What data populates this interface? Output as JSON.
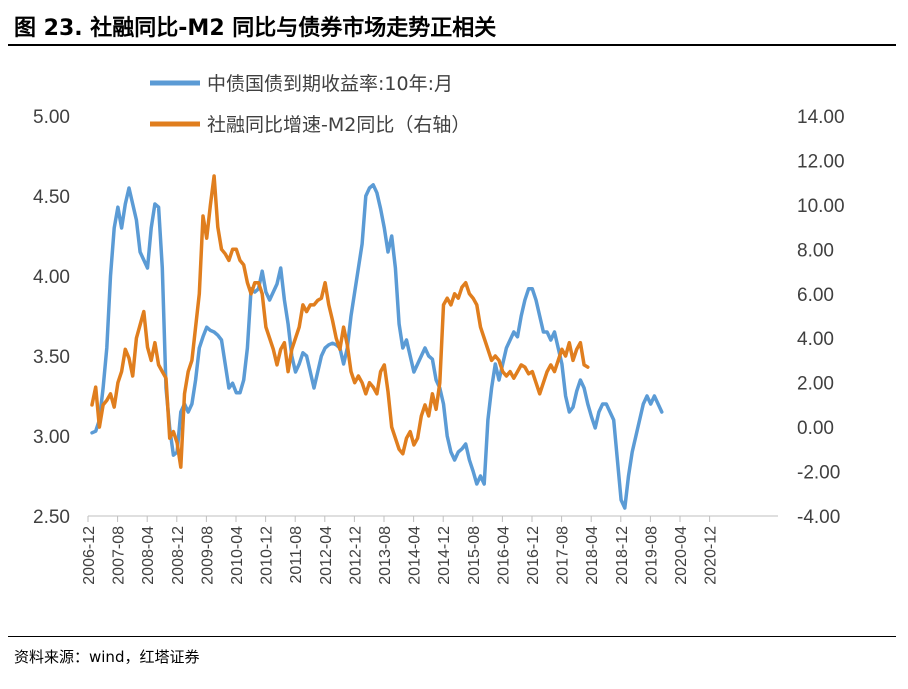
{
  "title": "图 23. 社融同比-M2 同比与债券市场走势正相关",
  "source": "资料来源：wind，红塔证券",
  "chart_data": {
    "type": "line",
    "legend_position": "top-center",
    "y_left": {
      "ticks": [
        "2.50",
        "3.00",
        "3.50",
        "4.00",
        "4.50",
        "5.00"
      ],
      "range": [
        2.5,
        5.0
      ]
    },
    "y_right": {
      "ticks": [
        "-4.00",
        "-2.00",
        "0.00",
        "2.00",
        "4.00",
        "6.00",
        "8.00",
        "10.00",
        "12.00",
        "14.00"
      ],
      "range": [
        -4,
        14
      ]
    },
    "x_ticks": [
      "2006-12",
      "2007-08",
      "2008-04",
      "2008-12",
      "2009-08",
      "2010-04",
      "2010-12",
      "2011-08",
      "2012-04",
      "2012-12",
      "2013-08",
      "2014-04",
      "2014-12",
      "2015-08",
      "2016-04",
      "2016-12",
      "2017-08",
      "2018-04",
      "2018-12",
      "2019-08",
      "2020-04",
      "2020-12"
    ],
    "x_start": "2006-12",
    "series": [
      {
        "name": "中债国债到期收益率:10年:月",
        "axis": "left",
        "color": "#5B9BD5",
        "values": [
          3.02,
          3.03,
          3.1,
          3.3,
          3.55,
          4.0,
          4.3,
          4.43,
          4.3,
          4.45,
          4.55,
          4.45,
          4.35,
          4.15,
          4.1,
          4.05,
          4.3,
          4.45,
          4.43,
          4.05,
          3.3,
          3.05,
          2.88,
          2.9,
          3.15,
          3.2,
          3.15,
          3.2,
          3.35,
          3.55,
          3.62,
          3.68,
          3.66,
          3.65,
          3.63,
          3.6,
          3.45,
          3.3,
          3.33,
          3.27,
          3.27,
          3.35,
          3.55,
          3.92,
          3.9,
          3.92,
          4.03,
          3.9,
          3.85,
          3.9,
          3.95,
          4.05,
          3.85,
          3.7,
          3.5,
          3.4,
          3.45,
          3.52,
          3.5,
          3.4,
          3.3,
          3.4,
          3.5,
          3.55,
          3.57,
          3.58,
          3.57,
          3.55,
          3.45,
          3.55,
          3.75,
          3.9,
          4.05,
          4.2,
          4.5,
          4.55,
          4.57,
          4.52,
          4.42,
          4.3,
          4.15,
          4.25,
          4.05,
          3.7,
          3.55,
          3.6,
          3.5,
          3.4,
          3.45,
          3.5,
          3.55,
          3.5,
          3.48,
          3.35,
          3.3,
          3.2,
          3.0,
          2.9,
          2.85,
          2.9,
          2.92,
          2.95,
          2.85,
          2.78,
          2.7,
          2.75,
          2.7,
          3.1,
          3.3,
          3.45,
          3.35,
          3.45,
          3.55,
          3.6,
          3.65,
          3.62,
          3.75,
          3.85,
          3.92,
          3.92,
          3.85,
          3.75,
          3.65,
          3.65,
          3.6,
          3.65,
          3.55,
          3.45,
          3.25,
          3.15,
          3.18,
          3.28,
          3.35,
          3.3,
          3.2,
          3.12,
          3.05,
          3.15,
          3.2,
          3.2,
          3.15,
          3.1,
          2.85,
          2.6,
          2.55,
          2.75,
          2.9,
          3.0,
          3.1,
          3.2,
          3.25,
          3.2,
          3.25,
          3.2,
          3.15
        ]
      },
      {
        "name": "社融同比增速-M2同比（右轴）",
        "axis": "right",
        "color": "#E07E1E",
        "values": [
          1.0,
          1.8,
          0.0,
          1.0,
          1.2,
          1.5,
          0.9,
          2.0,
          2.5,
          3.5,
          3.1,
          2.3,
          4.0,
          4.6,
          5.2,
          3.6,
          3.0,
          3.8,
          2.8,
          2.5,
          2.2,
          -0.5,
          -0.2,
          -0.7,
          -1.8,
          1.5,
          2.5,
          3.0,
          4.5,
          6.0,
          9.5,
          8.5,
          10.0,
          11.3,
          9.0,
          8.0,
          7.8,
          7.5,
          8.0,
          8.0,
          7.5,
          7.3,
          6.5,
          6.0,
          6.5,
          6.5,
          6.0,
          4.5,
          4.0,
          3.5,
          2.8,
          3.5,
          3.8,
          2.5,
          3.5,
          4.0,
          4.5,
          5.5,
          5.2,
          5.5,
          5.5,
          5.7,
          5.8,
          6.5,
          5.5,
          4.8,
          4.0,
          3.5,
          4.5,
          3.7,
          2.5,
          2.0,
          2.3,
          2.0,
          1.5,
          2.0,
          1.8,
          1.5,
          2.5,
          2.8,
          1.6,
          0.0,
          -0.5,
          -1.0,
          -1.2,
          -0.5,
          -0.2,
          -0.8,
          -0.5,
          0.5,
          1.0,
          0.5,
          1.5,
          0.8,
          2.0,
          5.5,
          5.8,
          5.5,
          6.0,
          5.8,
          6.3,
          6.5,
          6.0,
          5.8,
          5.5,
          4.5,
          4.0,
          3.5,
          3.0,
          3.2,
          3.0,
          2.5,
          2.3,
          2.5,
          2.2,
          2.5,
          2.8,
          2.7,
          2.4,
          2.5,
          2.0,
          1.5,
          2.0,
          2.5,
          2.8,
          2.5,
          3.0,
          3.5,
          3.2,
          3.8,
          3.0,
          3.5,
          3.8,
          2.8,
          2.7
        ]
      }
    ]
  }
}
